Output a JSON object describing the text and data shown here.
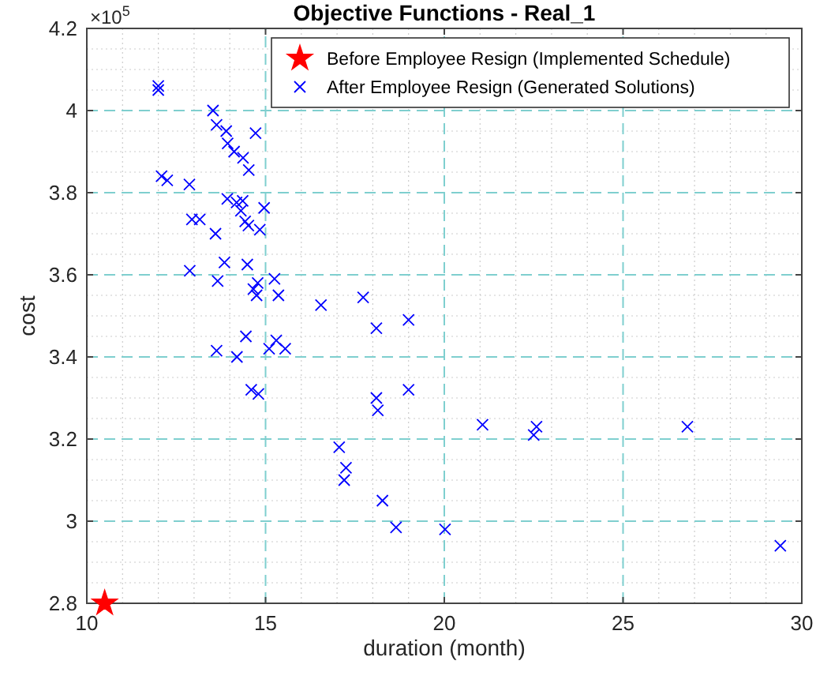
{
  "chart_data": {
    "type": "scatter",
    "title": "Objective Functions - Real_1",
    "xlabel": "duration (month)",
    "ylabel": "cost",
    "annotations": [
      "×10$^{5}$"
    ],
    "xlim": [
      10,
      30
    ],
    "xticks": [
      10,
      15,
      20,
      25,
      30
    ],
    "ylim": [
      2.8,
      4.2
    ],
    "yticks": [
      {
        "value": 2.8,
        "label": "2.8"
      },
      {
        "value": 3,
        "label": "3"
      },
      {
        "value": 3.2,
        "label": "3.2"
      },
      {
        "value": 3.4,
        "label": "3.4"
      },
      {
        "value": 3.6,
        "label": "3.6"
      },
      {
        "value": 3.8,
        "label": "3.8"
      },
      {
        "value": 4,
        "label": "4"
      },
      {
        "value": 4.2,
        "label": "4.2"
      }
    ],
    "grid": true,
    "legend": "top right",
    "series": [
      {
        "name": "Before Employee Resign (Implemented Schedule)",
        "color": "#ff0000",
        "marker": "star",
        "x": [
          10.5
        ],
        "values": [
          2.8
        ]
      },
      {
        "name": "After Employee Resign (Generated Solutions)",
        "color": "#0000ff",
        "marker": "cross",
        "x": [
          12.0,
          12.0,
          13.53,
          13.63,
          13.9,
          14.72,
          13.94,
          14.12,
          14.37,
          14.53,
          12.09,
          12.25,
          12.87,
          13.93,
          14.19,
          14.36,
          14.31,
          14.96,
          14.43,
          14.52,
          14.84,
          12.94,
          13.16,
          13.6,
          13.85,
          14.49,
          12.88,
          13.66,
          14.78,
          15.25,
          14.66,
          14.75,
          15.36,
          16.55,
          17.73,
          14.45,
          14.2,
          15.3,
          15.1,
          15.55,
          18.1,
          19.0,
          14.6,
          14.8,
          18.1,
          18.14,
          19.0,
          13.63,
          21.07,
          22.58,
          22.5,
          26.8,
          17.06,
          17.25,
          17.2,
          18.27,
          18.65,
          20.02,
          29.4
        ],
        "values": [
          4.06,
          4.05,
          4.0,
          3.965,
          3.95,
          3.945,
          3.92,
          3.9,
          3.885,
          3.855,
          3.84,
          3.83,
          3.82,
          3.785,
          3.776,
          3.78,
          3.756,
          3.763,
          3.73,
          3.72,
          3.71,
          3.735,
          3.735,
          3.7,
          3.63,
          3.625,
          3.61,
          3.585,
          3.58,
          3.59,
          3.565,
          3.55,
          3.55,
          3.526,
          3.545,
          3.45,
          3.4,
          3.44,
          3.42,
          3.42,
          3.47,
          3.49,
          3.32,
          3.31,
          3.3,
          3.27,
          3.32,
          3.415,
          3.235,
          3.23,
          3.21,
          3.23,
          3.18,
          3.13,
          3.1,
          3.05,
          2.985,
          2.98,
          2.94
        ]
      }
    ]
  }
}
